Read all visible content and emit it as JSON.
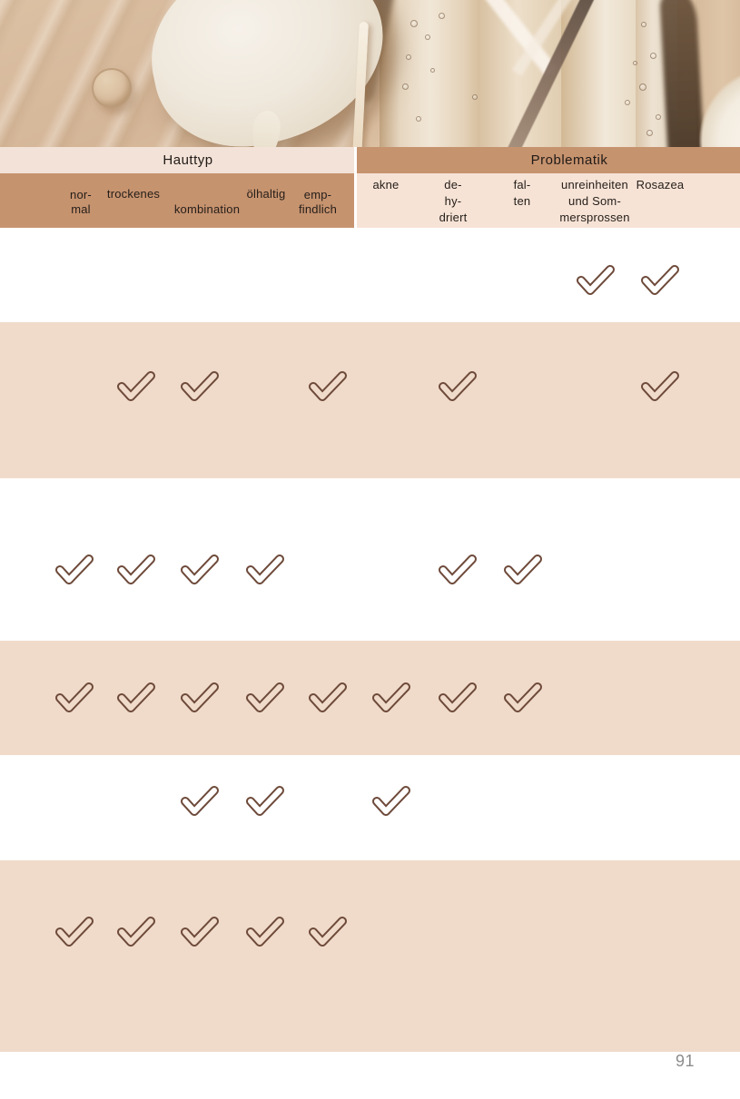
{
  "page": {
    "number": "91"
  },
  "header": {
    "groups": [
      {
        "title": "Hauttyp"
      },
      {
        "title": "Problematik"
      }
    ]
  },
  "columns": [
    {
      "id": "normal",
      "group": "Hauttyp",
      "label_lines": [
        "nor-",
        "mal"
      ]
    },
    {
      "id": "trockenes",
      "group": "Hauttyp",
      "label_lines": [
        "trockenes"
      ]
    },
    {
      "id": "kombination",
      "group": "Hauttyp",
      "label_lines": [
        "kombination"
      ]
    },
    {
      "id": "oelhaltig",
      "group": "Hauttyp",
      "label_lines": [
        "ölhaltig"
      ]
    },
    {
      "id": "empfindlich",
      "group": "Hauttyp",
      "label_lines": [
        "emp-",
        "findlich"
      ]
    },
    {
      "id": "akne",
      "group": "Problematik",
      "label_lines": [
        "akne"
      ]
    },
    {
      "id": "dehydriert",
      "group": "Problematik",
      "label_lines": [
        "de-",
        "hy-",
        "driert"
      ]
    },
    {
      "id": "falten",
      "group": "Problematik",
      "label_lines": [
        "fal-",
        "ten"
      ]
    },
    {
      "id": "unreinheiten",
      "group": "Problematik",
      "label_lines": [
        "unreinheiten",
        "und Som-",
        "mersprossen"
      ]
    },
    {
      "id": "rosazea",
      "group": "Problematik",
      "label_lines": [
        "Rosazea"
      ]
    }
  ],
  "rows": [
    {
      "checks": [
        0,
        0,
        0,
        0,
        0,
        0,
        0,
        0,
        1,
        1
      ]
    },
    {
      "checks": [
        0,
        1,
        1,
        0,
        1,
        0,
        1,
        0,
        0,
        1
      ]
    },
    {
      "checks": [
        1,
        1,
        1,
        1,
        0,
        0,
        1,
        1,
        0,
        0
      ]
    },
    {
      "checks": [
        1,
        1,
        1,
        1,
        1,
        1,
        1,
        1,
        0,
        0
      ]
    },
    {
      "checks": [
        0,
        0,
        1,
        1,
        0,
        1,
        0,
        0,
        0,
        0
      ]
    },
    {
      "checks": [
        1,
        1,
        1,
        1,
        1,
        0,
        0,
        0,
        0,
        0
      ]
    }
  ],
  "icons": {
    "check": "outlined-checkmark ✔"
  },
  "colors": {
    "tan": "#c6936f",
    "light_band": "#f3e2d7",
    "light_band_right": "#f6e3d6",
    "row_pink": "#f0dbca",
    "check_brown": "#6e4a3a",
    "page_number_gray": "#8c8c8c"
  }
}
